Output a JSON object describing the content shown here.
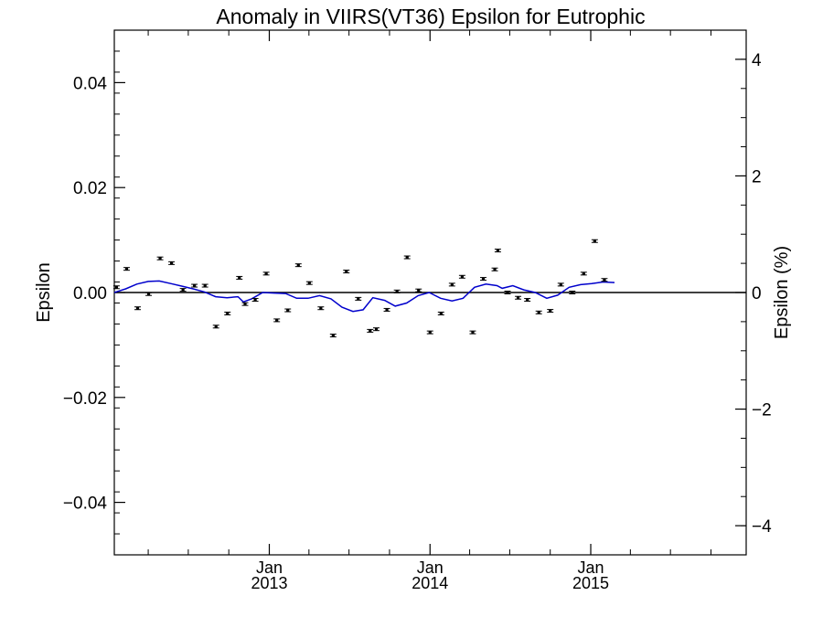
{
  "chart_data": {
    "type": "scatter",
    "title": "Anomaly in VIIRS(VT36) Epsilon for Eutrophic",
    "ylabel": "Epsilon",
    "ylabel_right": "Epsilon (%)",
    "xlabel": "",
    "ylim": [
      -0.05,
      0.05
    ],
    "ylim_right": [
      -4.5,
      4.5
    ],
    "xlim": [
      "2012-01-15",
      "2015-12-20"
    ],
    "grid": false,
    "legend": "none",
    "yticks": [
      {
        "value": 0.04,
        "label": "0.04"
      },
      {
        "value": 0.02,
        "label": "0.02"
      },
      {
        "value": 0.0,
        "label": "0.00"
      },
      {
        "value": -0.02,
        "label": "−0.02"
      },
      {
        "value": -0.04,
        "label": "−0.04"
      }
    ],
    "yticks_right": [
      {
        "value": 4,
        "label": "4"
      },
      {
        "value": 2,
        "label": "2"
      },
      {
        "value": 0,
        "label": "0"
      },
      {
        "value": -2,
        "label": "−2"
      },
      {
        "value": -4,
        "label": "−4"
      }
    ],
    "xticks": [
      {
        "date": "2013-01-01",
        "month": "Jan",
        "year": "2013"
      },
      {
        "date": "2014-01-01",
        "month": "Jan",
        "year": "2014"
      },
      {
        "date": "2015-01-01",
        "month": "Jan",
        "year": "2015"
      }
    ],
    "colors": {
      "points": "#000000",
      "line": "#0000cc",
      "zero_line": "#000000"
    },
    "series": [
      {
        "kind": "points_with_errorbars",
        "points": [
          {
            "x": "2012-01-20",
            "y": 0.001
          },
          {
            "x": "2012-02-12",
            "y": 0.0045
          },
          {
            "x": "2012-03-08",
            "y": -0.003
          },
          {
            "x": "2012-04-02",
            "y": -0.0003
          },
          {
            "x": "2012-04-28",
            "y": 0.0065
          },
          {
            "x": "2012-05-24",
            "y": 0.0056
          },
          {
            "x": "2012-06-19",
            "y": 0.0005
          },
          {
            "x": "2012-07-15",
            "y": 0.0013
          },
          {
            "x": "2012-08-08",
            "y": 0.0013
          },
          {
            "x": "2012-09-02",
            "y": -0.0065
          },
          {
            "x": "2012-09-28",
            "y": -0.004
          },
          {
            "x": "2012-10-25",
            "y": 0.0028
          },
          {
            "x": "2012-11-07",
            "y": -0.0022
          },
          {
            "x": "2012-11-30",
            "y": -0.0014
          },
          {
            "x": "2012-12-25",
            "y": 0.0036
          },
          {
            "x": "2013-01-18",
            "y": -0.0053
          },
          {
            "x": "2013-02-12",
            "y": -0.0034
          },
          {
            "x": "2013-03-08",
            "y": 0.0052
          },
          {
            "x": "2013-04-02",
            "y": 0.0018
          },
          {
            "x": "2013-04-28",
            "y": -0.003
          },
          {
            "x": "2013-05-26",
            "y": -0.0082
          },
          {
            "x": "2013-06-25",
            "y": 0.004
          },
          {
            "x": "2013-07-22",
            "y": -0.0012
          },
          {
            "x": "2013-08-18",
            "y": -0.0073
          },
          {
            "x": "2013-09-01",
            "y": -0.007
          },
          {
            "x": "2013-09-25",
            "y": -0.0033
          },
          {
            "x": "2013-10-18",
            "y": 0.0002
          },
          {
            "x": "2013-11-10",
            "y": 0.0067
          },
          {
            "x": "2013-12-06",
            "y": 0.0004
          },
          {
            "x": "2014-01-01",
            "y": -0.0076
          },
          {
            "x": "2014-01-26",
            "y": -0.004
          },
          {
            "x": "2014-02-20",
            "y": 0.0015
          },
          {
            "x": "2014-03-15",
            "y": 0.003
          },
          {
            "x": "2014-04-08",
            "y": -0.0076
          },
          {
            "x": "2014-05-02",
            "y": 0.0026
          },
          {
            "x": "2014-05-28",
            "y": 0.0044
          },
          {
            "x": "2014-06-04",
            "y": 0.008
          },
          {
            "x": "2014-06-26",
            "y": 0.0
          },
          {
            "x": "2014-07-20",
            "y": -0.001
          },
          {
            "x": "2014-08-10",
            "y": -0.0014
          },
          {
            "x": "2014-09-05",
            "y": -0.0038
          },
          {
            "x": "2014-10-01",
            "y": -0.0035
          },
          {
            "x": "2014-10-25",
            "y": 0.0015
          },
          {
            "x": "2014-11-20",
            "y": 0.0
          },
          {
            "x": "2014-12-16",
            "y": 0.0036
          },
          {
            "x": "2015-01-10",
            "y": 0.0098
          },
          {
            "x": "2015-02-01",
            "y": 0.0024
          }
        ]
      },
      {
        "kind": "line",
        "points": [
          {
            "x": "2012-01-15",
            "y": 0.0
          },
          {
            "x": "2012-02-10",
            "y": 0.0007
          },
          {
            "x": "2012-03-06",
            "y": 0.0016
          },
          {
            "x": "2012-04-01",
            "y": 0.0021
          },
          {
            "x": "2012-04-26",
            "y": 0.0022
          },
          {
            "x": "2012-05-22",
            "y": 0.0017
          },
          {
            "x": "2012-06-17",
            "y": 0.0012
          },
          {
            "x": "2012-07-12",
            "y": 0.0007
          },
          {
            "x": "2012-08-07",
            "y": 0.0001
          },
          {
            "x": "2012-09-01",
            "y": -0.0008
          },
          {
            "x": "2012-09-27",
            "y": -0.001
          },
          {
            "x": "2012-10-22",
            "y": -0.0008
          },
          {
            "x": "2012-11-03",
            "y": -0.0018
          },
          {
            "x": "2012-11-22",
            "y": -0.0012
          },
          {
            "x": "2012-12-17",
            "y": 0.0
          },
          {
            "x": "2013-01-12",
            "y": -0.0001
          },
          {
            "x": "2013-02-07",
            "y": -0.0002
          },
          {
            "x": "2013-03-04",
            "y": -0.0011
          },
          {
            "x": "2013-03-30",
            "y": -0.0011
          },
          {
            "x": "2013-04-25",
            "y": -0.0006
          },
          {
            "x": "2013-05-21",
            "y": -0.0012
          },
          {
            "x": "2013-06-15",
            "y": -0.0028
          },
          {
            "x": "2013-07-10",
            "y": -0.0036
          },
          {
            "x": "2013-08-02",
            "y": -0.0033
          },
          {
            "x": "2013-08-24",
            "y": -0.001
          },
          {
            "x": "2013-09-20",
            "y": -0.0015
          },
          {
            "x": "2013-10-14",
            "y": -0.0026
          },
          {
            "x": "2013-11-09",
            "y": -0.002
          },
          {
            "x": "2013-12-05",
            "y": -0.0006
          },
          {
            "x": "2013-12-30",
            "y": 0.0
          },
          {
            "x": "2014-01-25",
            "y": -0.0011
          },
          {
            "x": "2014-02-20",
            "y": -0.0016
          },
          {
            "x": "2014-03-17",
            "y": -0.0011
          },
          {
            "x": "2014-04-12",
            "y": 0.001
          },
          {
            "x": "2014-05-08",
            "y": 0.0016
          },
          {
            "x": "2014-06-02",
            "y": 0.0013
          },
          {
            "x": "2014-06-14",
            "y": 0.0008
          },
          {
            "x": "2014-07-08",
            "y": 0.0013
          },
          {
            "x": "2014-08-02",
            "y": 0.0005
          },
          {
            "x": "2014-08-28",
            "y": 0.0
          },
          {
            "x": "2014-09-23",
            "y": -0.0011
          },
          {
            "x": "2014-10-18",
            "y": -0.0005
          },
          {
            "x": "2014-11-13",
            "y": 0.001
          },
          {
            "x": "2014-12-09",
            "y": 0.0015
          },
          {
            "x": "2015-01-03",
            "y": 0.0017
          },
          {
            "x": "2015-01-29",
            "y": 0.002
          },
          {
            "x": "2015-02-24",
            "y": 0.0019
          }
        ]
      }
    ]
  }
}
